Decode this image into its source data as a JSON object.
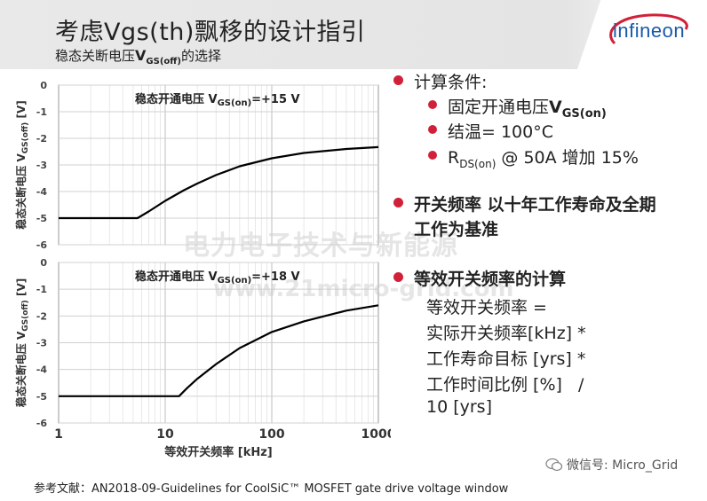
{
  "header": {
    "title": "考虑Vgs(th)飘移的设计指引",
    "subtitle_prefix": "稳态关断电压",
    "subtitle_v": "V",
    "subtitle_sub": "GS(off)",
    "subtitle_suffix": "的选择",
    "logo_text": "infineon"
  },
  "watermark": {
    "line1": "电力电子技术与新能源",
    "line2": "www.21micro-grid.com"
  },
  "bullets": {
    "calc_conditions": "计算条件:",
    "fixed_on_voltage_prefix": "固定开通电压",
    "fixed_on_voltage_v": "V",
    "fixed_on_voltage_sub": "GS(on)",
    "junction_temp": "结温= 100°C",
    "rds_prefix": "R",
    "rds_sub": "DS(on)",
    "rds_suffix": " @ 50A 增加 15%",
    "switching_freq_line1": "开关频率 以十年工作寿命及全期",
    "switching_freq_line2": "工作为基准",
    "equiv_title": "等效开关频率的计算",
    "equiv_lines": [
      "等效开关频率 =",
      "实际开关频率[kHz] *",
      "工作寿命目标 [yrs] *",
      "工作时间比例 [%]   /",
      "10 [yrs]"
    ]
  },
  "footer": {
    "reference": "参考文献：AN2018-09-Guidelines for CoolSiC™ MOSFET gate drive voltage window",
    "wechat": "微信号: Micro_Grid"
  },
  "colors": {
    "accent": "#d1213a",
    "logo_blue": "#1a5aa8",
    "header_bg": "#e6e6e6"
  },
  "chart_data": [
    {
      "type": "line",
      "title_prefix": "稳态开通电压 ",
      "title_v": "V",
      "title_sub": "GS(on)",
      "title_suffix": "=+15 V",
      "ylabel_prefix": "稳态关断电压 V",
      "ylabel_sub": "GS(off)",
      "ylabel_unit": " [V]",
      "xscale": "log",
      "xlim": [
        1,
        1000
      ],
      "ylim": [
        -6,
        0
      ],
      "yticks": [
        "0",
        "-1",
        "-2",
        "-3",
        "-4",
        "-5",
        "-6"
      ],
      "grid": true,
      "x": [
        1,
        2,
        4,
        5.5,
        7,
        10,
        15,
        20,
        30,
        50,
        100,
        200,
        500,
        1000
      ],
      "y": [
        -5,
        -5,
        -5,
        -5,
        -4.75,
        -4.35,
        -3.95,
        -3.7,
        -3.38,
        -3.05,
        -2.75,
        -2.55,
        -2.4,
        -2.33
      ]
    },
    {
      "type": "line",
      "title_prefix": "稳态开通电压 ",
      "title_v": "V",
      "title_sub": "GS(on)",
      "title_suffix": "=+18 V",
      "ylabel_prefix": "稳态关断电压 V",
      "ylabel_sub": "GS(off)",
      "ylabel_unit": " [V]",
      "xscale": "log",
      "xlim": [
        1,
        1000
      ],
      "ylim": [
        -6,
        0
      ],
      "xticks": [
        "1",
        "10",
        "100",
        "1000"
      ],
      "xlabel": "等效开关频率 [kHz]",
      "yticks": [
        "0",
        "-1",
        "-2",
        "-3",
        "-4",
        "-5",
        "-6"
      ],
      "grid": true,
      "x": [
        1,
        5,
        10,
        13.5,
        16,
        20,
        30,
        50,
        100,
        200,
        500,
        1000
      ],
      "y": [
        -5,
        -5,
        -5,
        -5,
        -4.7,
        -4.35,
        -3.8,
        -3.2,
        -2.6,
        -2.2,
        -1.8,
        -1.6
      ]
    }
  ]
}
